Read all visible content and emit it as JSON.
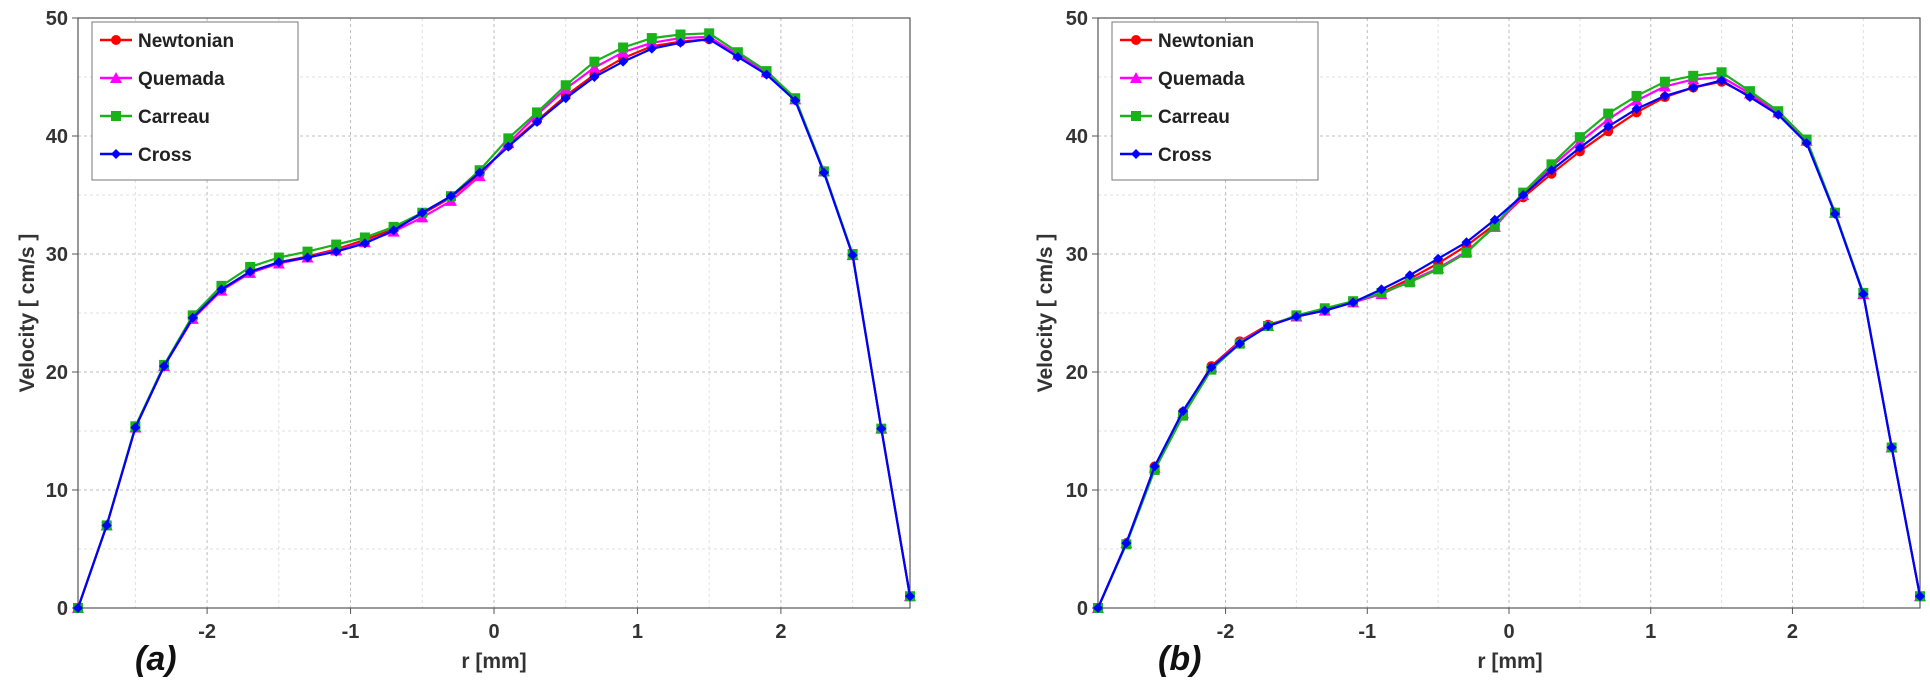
{
  "figure": {
    "x_axis_label": "r [mm]",
    "y_axis_label": "Velocity [ cm/s ]"
  },
  "series_style": [
    {
      "name": "Newtonian",
      "color": "#ff0000",
      "marker": "circle"
    },
    {
      "name": "Quemada",
      "color": "#ff00ff",
      "marker": "triangle"
    },
    {
      "name": "Carreau",
      "color": "#19b219",
      "marker": "square"
    },
    {
      "name": "Cross",
      "color": "#0000ff",
      "marker": "diamond"
    }
  ],
  "chart_data": [
    {
      "type": "line",
      "panel_label": "(a)",
      "xlabel": "r [mm]",
      "ylabel": "Velocity [ cm/s ]",
      "xlim": [
        -2.9,
        2.9
      ],
      "ylim": [
        0,
        50
      ],
      "xticks": [
        -2,
        -1,
        0,
        1,
        2
      ],
      "yticks": [
        0,
        10,
        20,
        30,
        40,
        50
      ],
      "grid": true,
      "legend": "top-left",
      "x": [
        -2.9,
        -2.7,
        -2.5,
        -2.3,
        -2.1,
        -1.9,
        -1.7,
        -1.5,
        -1.3,
        -1.1,
        -0.9,
        -0.7,
        -0.5,
        -0.3,
        -0.1,
        0.1,
        0.3,
        0.5,
        0.7,
        0.9,
        1.1,
        1.3,
        1.5,
        1.7,
        1.9,
        2.1,
        2.3,
        2.5,
        2.7,
        2.9
      ],
      "series": [
        {
          "name": "Newtonian",
          "values": [
            0,
            7.0,
            15.3,
            20.5,
            24.6,
            27.0,
            28.5,
            29.3,
            29.8,
            30.4,
            31.2,
            32.1,
            33.4,
            34.8,
            36.8,
            39.2,
            41.3,
            43.4,
            45.2,
            46.6,
            47.6,
            48.0,
            48.2,
            46.8,
            45.3,
            43.1,
            37.0,
            29.9,
            15.2,
            1.0
          ]
        },
        {
          "name": "Quemada",
          "values": [
            0,
            7.0,
            15.3,
            20.5,
            24.5,
            26.9,
            28.4,
            29.2,
            29.7,
            30.3,
            31.0,
            31.9,
            33.1,
            34.5,
            36.6,
            39.4,
            41.8,
            44.0,
            45.8,
            47.1,
            47.9,
            48.3,
            48.4,
            46.9,
            45.4,
            43.1,
            37.0,
            29.9,
            15.2,
            1.0
          ]
        },
        {
          "name": "Carreau",
          "values": [
            0,
            7.0,
            15.4,
            20.6,
            24.8,
            27.3,
            28.9,
            29.7,
            30.2,
            30.8,
            31.4,
            32.3,
            33.5,
            34.9,
            37.1,
            39.8,
            42.0,
            44.3,
            46.3,
            47.5,
            48.3,
            48.6,
            48.7,
            47.1,
            45.5,
            43.2,
            37.0,
            30.0,
            15.2,
            1.0
          ]
        },
        {
          "name": "Cross",
          "values": [
            0,
            7.0,
            15.3,
            20.5,
            24.6,
            27.0,
            28.5,
            29.3,
            29.7,
            30.2,
            30.9,
            32.0,
            33.5,
            34.9,
            36.9,
            39.1,
            41.2,
            43.2,
            45.0,
            46.3,
            47.4,
            47.9,
            48.2,
            46.7,
            45.2,
            43.0,
            36.9,
            29.9,
            15.2,
            1.0
          ]
        }
      ]
    },
    {
      "type": "line",
      "panel_label": "(b)",
      "xlabel": "r [mm]",
      "ylabel": "Velocity [ cm/s ]",
      "xlim": [
        -2.9,
        2.9
      ],
      "ylim": [
        0,
        50
      ],
      "xticks": [
        -2,
        -1,
        0,
        1,
        2
      ],
      "yticks": [
        0,
        10,
        20,
        30,
        40,
        50
      ],
      "grid": true,
      "legend": "top-left",
      "x": [
        -2.9,
        -2.7,
        -2.5,
        -2.3,
        -2.1,
        -1.9,
        -1.7,
        -1.5,
        -1.3,
        -1.1,
        -0.9,
        -0.7,
        -0.5,
        -0.3,
        -0.1,
        0.1,
        0.3,
        0.5,
        0.7,
        0.9,
        1.1,
        1.3,
        1.5,
        1.7,
        1.9,
        2.1,
        2.3,
        2.5,
        2.7,
        2.9
      ],
      "series": [
        {
          "name": "Newtonian",
          "values": [
            0,
            5.5,
            12.0,
            16.6,
            20.5,
            22.6,
            24.0,
            24.7,
            25.2,
            25.9,
            26.7,
            27.9,
            29.2,
            30.7,
            32.5,
            34.8,
            36.8,
            38.7,
            40.4,
            42.0,
            43.3,
            44.1,
            44.6,
            43.4,
            41.9,
            39.5,
            33.5,
            26.6,
            13.6,
            1.0
          ]
        },
        {
          "name": "Quemada",
          "values": [
            0,
            5.5,
            11.9,
            16.5,
            20.4,
            22.5,
            23.9,
            24.7,
            25.2,
            25.9,
            26.6,
            27.7,
            28.8,
            30.2,
            32.3,
            35.0,
            37.4,
            39.5,
            41.4,
            43.0,
            44.2,
            44.8,
            45.0,
            43.6,
            42.0,
            39.6,
            33.5,
            26.6,
            13.6,
            1.0
          ]
        },
        {
          "name": "Carreau",
          "values": [
            0,
            5.4,
            11.7,
            16.3,
            20.2,
            22.4,
            23.9,
            24.8,
            25.4,
            26.0,
            26.7,
            27.6,
            28.7,
            30.1,
            32.4,
            35.2,
            37.6,
            39.9,
            41.9,
            43.4,
            44.6,
            45.1,
            45.4,
            43.8,
            42.1,
            39.7,
            33.5,
            26.7,
            13.6,
            1.0
          ]
        },
        {
          "name": "Cross",
          "values": [
            0,
            5.5,
            12.0,
            16.7,
            20.4,
            22.4,
            23.9,
            24.7,
            25.2,
            25.9,
            27.0,
            28.2,
            29.6,
            31.0,
            32.9,
            35.0,
            37.1,
            39.0,
            40.8,
            42.3,
            43.4,
            44.1,
            44.7,
            43.3,
            41.8,
            39.4,
            33.4,
            26.6,
            13.6,
            1.0
          ]
        }
      ]
    }
  ]
}
